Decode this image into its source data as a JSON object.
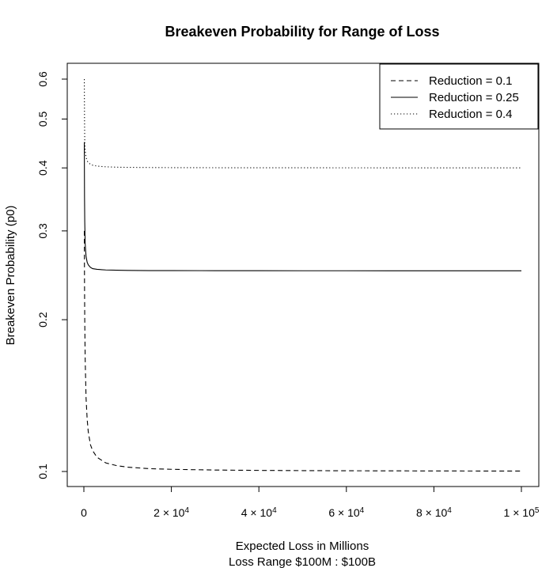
{
  "chart_data": {
    "type": "line",
    "title": "Breakeven Probability for Range of Loss",
    "xlabel": "Expected Loss in Millions",
    "xlabel_sub": "Loss Range $100M : $100B",
    "ylabel": "Breakeven Probability (p0)",
    "y_scale": "log",
    "xlim": [
      100,
      100000
    ],
    "ylim": [
      0.1,
      0.6
    ],
    "x_ticks": [
      {
        "value": 0,
        "mant": "0",
        "exp": ""
      },
      {
        "value": 20000,
        "mant": "2 × 10",
        "exp": "4"
      },
      {
        "value": 40000,
        "mant": "4 × 10",
        "exp": "4"
      },
      {
        "value": 60000,
        "mant": "6 × 10",
        "exp": "4"
      },
      {
        "value": 80000,
        "mant": "8 × 10",
        "exp": "4"
      },
      {
        "value": 100000,
        "mant": "1 × 10",
        "exp": "5"
      }
    ],
    "y_ticks": [
      {
        "value": 0.1,
        "label": "0.1"
      },
      {
        "value": 0.2,
        "label": "0.2"
      },
      {
        "value": 0.3,
        "label": "0.3"
      },
      {
        "value": 0.4,
        "label": "0.4"
      },
      {
        "value": 0.5,
        "label": "0.5"
      },
      {
        "value": 0.6,
        "label": "0.6"
      }
    ],
    "legend_position": "top-right",
    "grid": false,
    "series": [
      {
        "name": "Reduction = 0.1",
        "style": "dashed",
        "x": [
          100,
          150,
          200,
          300,
          500,
          750,
          1000,
          1500,
          2000,
          3000,
          5000,
          7500,
          10000,
          15000,
          20000,
          30000,
          40000,
          50000,
          60000,
          70000,
          80000,
          90000,
          100000
        ],
        "y": [
          0.3,
          0.235,
          0.2,
          0.167,
          0.14,
          0.127,
          0.12,
          0.113,
          0.11,
          0.1067,
          0.104,
          0.1027,
          0.102,
          0.1013,
          0.101,
          0.10067,
          0.1005,
          0.1004,
          0.10033,
          0.10029,
          0.10025,
          0.10022,
          0.1002
        ]
      },
      {
        "name": "Reduction = 0.25",
        "style": "solid",
        "x": [
          100,
          150,
          200,
          300,
          500,
          750,
          1000,
          1500,
          2000,
          3000,
          5000,
          7500,
          10000,
          15000,
          20000,
          30000,
          40000,
          50000,
          60000,
          70000,
          80000,
          90000,
          100000
        ],
        "y": [
          0.45,
          0.35,
          0.313,
          0.283,
          0.267,
          0.26,
          0.257,
          0.254,
          0.2525,
          0.2517,
          0.251,
          0.2507,
          0.2505,
          0.2503,
          0.25025,
          0.25017,
          0.25013,
          0.2501,
          0.25008,
          0.25007,
          0.25006,
          0.25006,
          0.25005
        ]
      },
      {
        "name": "Reduction = 0.4",
        "style": "dotted",
        "x": [
          100,
          150,
          200,
          300,
          500,
          750,
          1000,
          1500,
          2000,
          3000,
          5000,
          7500,
          10000,
          15000,
          20000,
          30000,
          40000,
          50000,
          60000,
          70000,
          80000,
          90000,
          100000
        ],
        "y": [
          0.6,
          0.5,
          0.45,
          0.433,
          0.42,
          0.413,
          0.41,
          0.4067,
          0.405,
          0.4033,
          0.402,
          0.4013,
          0.401,
          0.4007,
          0.4005,
          0.40033,
          0.40025,
          0.4002,
          0.40017,
          0.40014,
          0.40013,
          0.40011,
          0.4001
        ]
      }
    ]
  }
}
